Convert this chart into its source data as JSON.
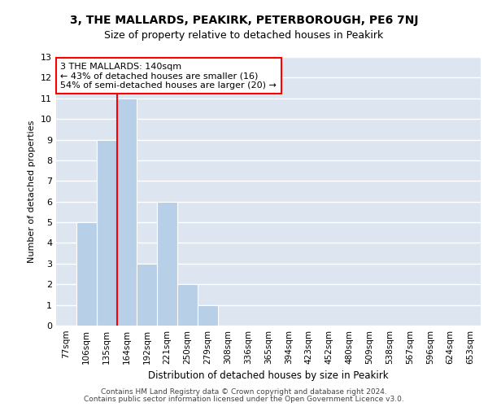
{
  "title1": "3, THE MALLARDS, PEAKIRK, PETERBOROUGH, PE6 7NJ",
  "title2": "Size of property relative to detached houses in Peakirk",
  "xlabel": "Distribution of detached houses by size in Peakirk",
  "ylabel": "Number of detached properties",
  "categories": [
    "77sqm",
    "106sqm",
    "135sqm",
    "164sqm",
    "192sqm",
    "221sqm",
    "250sqm",
    "279sqm",
    "308sqm",
    "336sqm",
    "365sqm",
    "394sqm",
    "423sqm",
    "452sqm",
    "480sqm",
    "509sqm",
    "538sqm",
    "567sqm",
    "596sqm",
    "624sqm",
    "653sqm"
  ],
  "values": [
    0,
    5,
    9,
    11,
    3,
    6,
    2,
    1,
    0,
    0,
    0,
    0,
    0,
    0,
    0,
    0,
    0,
    0,
    0,
    0,
    0
  ],
  "bar_color": "#b8cfe8",
  "background_color": "#dde6f0",
  "grid_color": "#ffffff",
  "red_line_x": 2.5,
  "ylim": [
    0,
    13
  ],
  "yticks": [
    0,
    1,
    2,
    3,
    4,
    5,
    6,
    7,
    8,
    9,
    10,
    11,
    12,
    13
  ],
  "annotation_text": "3 THE MALLARDS: 140sqm\n← 43% of detached houses are smaller (16)\n54% of semi-detached houses are larger (20) →",
  "footer1": "Contains HM Land Registry data © Crown copyright and database right 2024.",
  "footer2": "Contains public sector information licensed under the Open Government Licence v3.0.",
  "title1_fontsize": 10,
  "title2_fontsize": 9,
  "xlabel_fontsize": 8.5,
  "ylabel_fontsize": 8,
  "annotation_fontsize": 8,
  "footer_fontsize": 6.5,
  "tick_fontsize": 7.5,
  "ytick_fontsize": 8
}
